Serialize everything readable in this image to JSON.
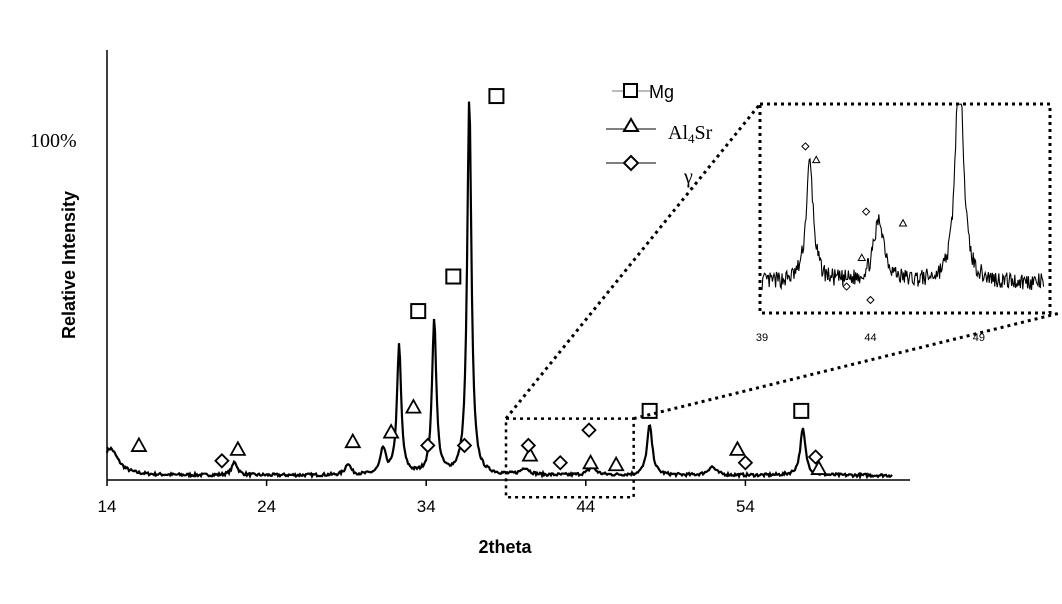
{
  "chart_data": {
    "type": "line",
    "xlabel": "2theta",
    "ylabel": "Relative Intensity",
    "xlim": [
      14,
      64
    ],
    "x_ticks": [
      14,
      24,
      34,
      44,
      54
    ],
    "ylim": [
      0,
      1.12
    ],
    "y_mark": {
      "value": 1.0,
      "label": "100%"
    },
    "legend": {
      "placement": "top-center",
      "entries": [
        {
          "name": "Mg",
          "marker": "square",
          "series_text": ""
        },
        {
          "name": "Al",
          "sub": "4",
          "name_tail": "Sr",
          "marker": "triangle"
        },
        {
          "name": "γ",
          "marker": "diamond"
        }
      ]
    },
    "peaks": [
      {
        "x": 14.2,
        "y": 0.07,
        "w": 0.6
      },
      {
        "x": 22.0,
        "y": 0.035,
        "w": 0.2
      },
      {
        "x": 29.1,
        "y": 0.03,
        "w": 0.2
      },
      {
        "x": 31.3,
        "y": 0.065,
        "w": 0.2
      },
      {
        "x": 32.3,
        "y": 0.335,
        "w": 0.16
      },
      {
        "x": 34.5,
        "y": 0.405,
        "w": 0.16
      },
      {
        "x": 36.7,
        "y": 0.98,
        "w": 0.16
      },
      {
        "x": 40.2,
        "y": 0.018,
        "w": 0.3
      },
      {
        "x": 44.4,
        "y": 0.02,
        "w": 0.3
      },
      {
        "x": 48.0,
        "y": 0.13,
        "w": 0.2
      },
      {
        "x": 51.9,
        "y": 0.022,
        "w": 0.3
      },
      {
        "x": 57.6,
        "y": 0.12,
        "w": 0.2
      }
    ],
    "markers": {
      "square": [
        [
          33.5,
          0.44
        ],
        [
          35.7,
          0.53
        ],
        [
          38.4,
          1.0
        ],
        [
          48.0,
          0.18
        ],
        [
          57.5,
          0.18
        ]
      ],
      "triangle": [
        [
          16.0,
          0.09
        ],
        [
          22.2,
          0.08
        ],
        [
          29.4,
          0.1
        ],
        [
          31.8,
          0.125
        ],
        [
          33.2,
          0.19
        ],
        [
          40.5,
          0.065
        ],
        [
          44.3,
          0.045
        ],
        [
          45.9,
          0.04
        ],
        [
          53.5,
          0.08
        ],
        [
          58.6,
          0.03
        ]
      ],
      "diamond": [
        [
          21.2,
          0.05
        ],
        [
          34.1,
          0.09
        ],
        [
          36.4,
          0.09
        ],
        [
          40.4,
          0.09
        ],
        [
          42.4,
          0.045
        ],
        [
          44.2,
          0.13
        ],
        [
          54.0,
          0.045
        ],
        [
          58.4,
          0.06
        ]
      ]
    },
    "zoom_box": {
      "x": [
        39.0,
        47.0
      ],
      "y": [
        -0.045,
        0.16
      ]
    },
    "inset": {
      "x_ticks": [
        39,
        44,
        49
      ],
      "xlim": [
        39,
        52
      ],
      "ylim": [
        0,
        1
      ],
      "peaks": [
        {
          "x": 41.2,
          "y": 0.62,
          "w": 0.2
        },
        {
          "x": 44.4,
          "y": 0.32,
          "w": 0.3
        },
        {
          "x": 48.1,
          "y": 1.3,
          "w": 0.2
        }
      ],
      "markers": {
        "diamond": [
          [
            41.0,
            0.8
          ],
          [
            42.9,
            0.07
          ],
          [
            43.8,
            0.46
          ],
          [
            44.0,
            0.0
          ]
        ],
        "triangle": [
          [
            41.5,
            0.73
          ],
          [
            43.6,
            0.22
          ],
          [
            45.5,
            0.4
          ]
        ]
      }
    }
  }
}
